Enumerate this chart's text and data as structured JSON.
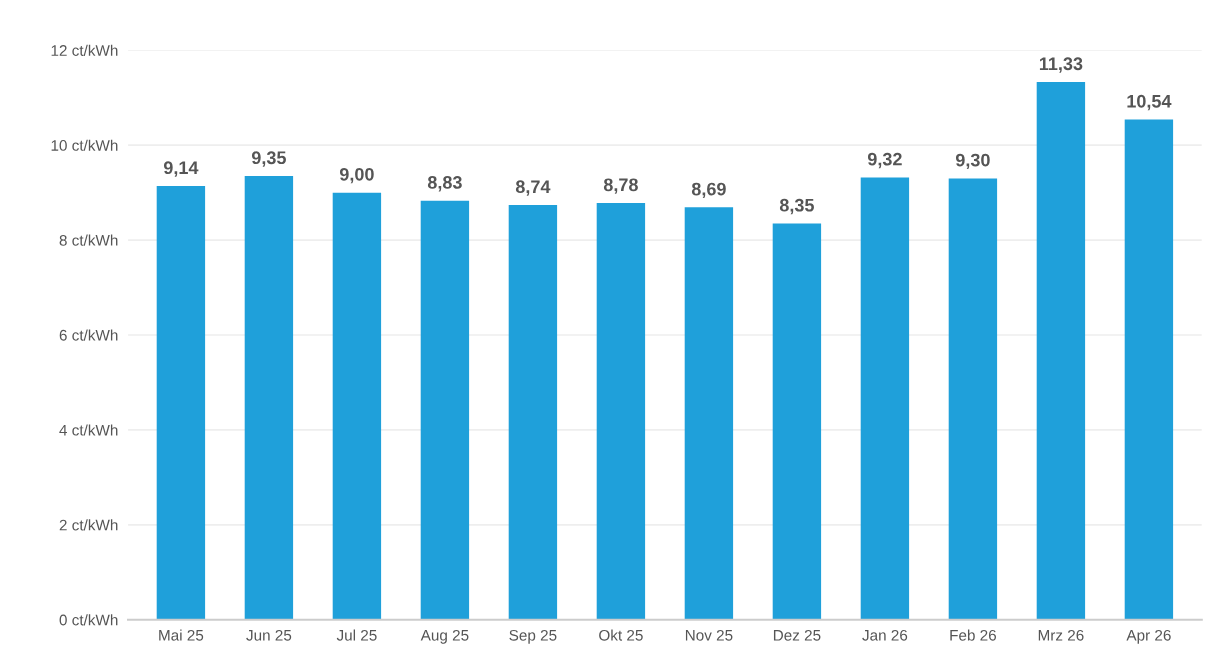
{
  "chart_data": {
    "type": "bar",
    "categories": [
      "Mai 25",
      "Jun 25",
      "Jul 25",
      "Aug 25",
      "Sep 25",
      "Okt 25",
      "Nov 25",
      "Dez 25",
      "Jan 26",
      "Feb 26",
      "Mrz 26",
      "Apr 26"
    ],
    "values": [
      9.14,
      9.35,
      9.0,
      8.83,
      8.74,
      8.78,
      8.69,
      8.35,
      9.32,
      9.3,
      11.33,
      10.54
    ],
    "value_labels": [
      "9,14",
      "9,35",
      "9,00",
      "8,83",
      "8,74",
      "8,78",
      "8,69",
      "8,35",
      "9,32",
      "9,30",
      "11,33",
      "10,54"
    ],
    "color": "#1fa0da",
    "ylim": [
      0,
      12
    ],
    "yticks": [
      {
        "value": 0,
        "label": "0 ct/kWh"
      },
      {
        "value": 2,
        "label": "2 ct/kWh"
      },
      {
        "value": 4,
        "label": "4 ct/kWh"
      },
      {
        "value": 6,
        "label": "6 ct/kWh"
      },
      {
        "value": 8,
        "label": "8 ct/kWh"
      },
      {
        "value": 10,
        "label": "10 ct/kWh"
      },
      {
        "value": 12,
        "label": "12 ct/kWh"
      }
    ],
    "grid": "y"
  }
}
